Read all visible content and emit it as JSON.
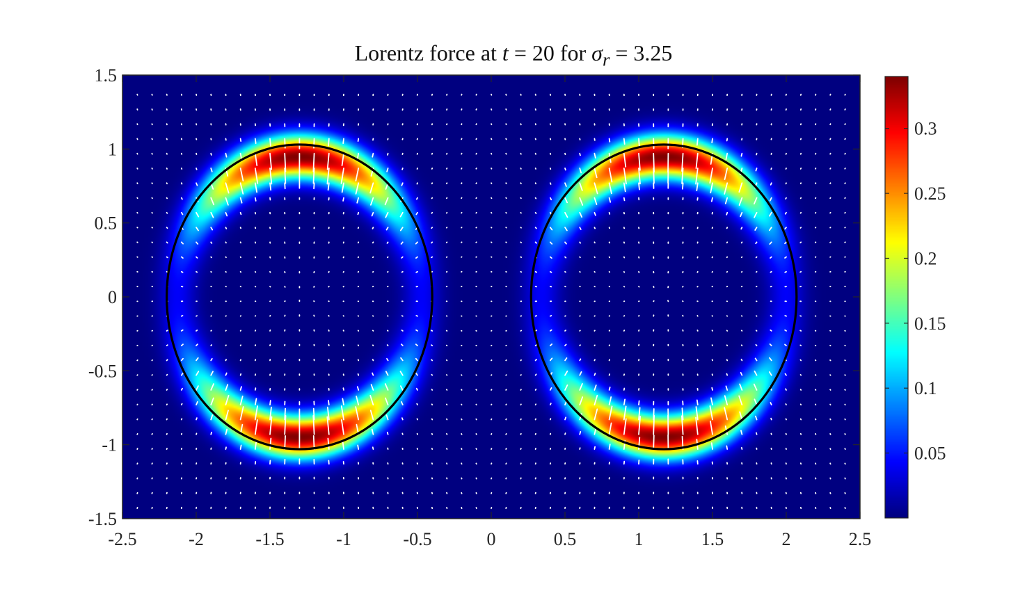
{
  "chart_data": {
    "type": "heatmap",
    "title": {
      "prefix": "Lorentz force at ",
      "var_t": "t",
      "eq1": " = 20 for ",
      "var_sigma": "σ",
      "var_sub": "r",
      "eq2": " = 3.25"
    },
    "xlim": [
      -2.5,
      2.5
    ],
    "ylim": [
      -1.5,
      1.5
    ],
    "x_ticks": [
      "-2.5",
      "-2",
      "-1.5",
      "-1",
      "-0.5",
      "0",
      "0.5",
      "1",
      "1.5",
      "2",
      "2.5"
    ],
    "x_tick_values": [
      -2.5,
      -2,
      -1.5,
      -1,
      -0.5,
      0,
      0.5,
      1,
      1.5,
      2,
      2.5
    ],
    "y_ticks": [
      "1.5",
      "1",
      "0.5",
      "0",
      "-0.5",
      "-1",
      "-1.5"
    ],
    "y_tick_values": [
      1.5,
      1,
      0.5,
      0,
      -0.5,
      -1,
      -1.5
    ],
    "colorbar": {
      "range": [
        0.0,
        0.34
      ],
      "ticks": [
        "0.05",
        "0.1",
        "0.15",
        "0.2",
        "0.25",
        "0.3"
      ],
      "tick_values": [
        0.05,
        0.1,
        0.15,
        0.2,
        0.25,
        0.3
      ],
      "colormap": "jet"
    },
    "ellipses": [
      {
        "cx": -1.3,
        "cy": 0.0,
        "rx": 0.9,
        "ry": 1.03
      },
      {
        "cx": 1.17,
        "cy": 0.0,
        "rx": 0.9,
        "ry": 1.03
      }
    ],
    "band_peak_magnitude": 0.34,
    "quiver": {
      "color": "white",
      "dx": 0.1,
      "dy": 0.1
    },
    "grid": false,
    "colors": {
      "ellipse": "#000000",
      "axes": "#262626",
      "arrows": "#ffffff"
    }
  }
}
